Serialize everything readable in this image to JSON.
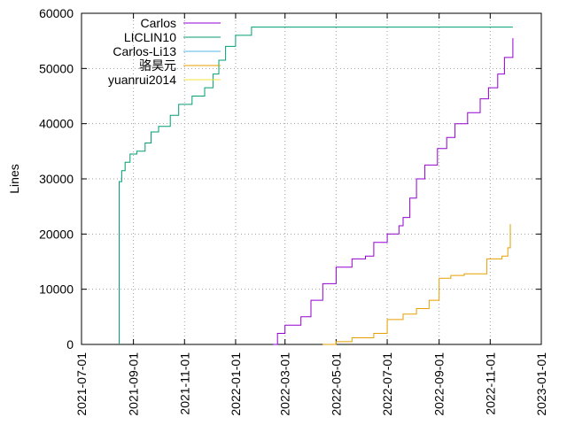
{
  "chart_data": {
    "type": "line",
    "title": "",
    "xlabel": "",
    "ylabel": "Lines",
    "xlim": [
      "2021-07-01",
      "2023-01-01"
    ],
    "ylim": [
      0,
      60000
    ],
    "grid": true,
    "legend_position": "top-left",
    "x_tick_labels": [
      "2021-07-01",
      "2021-09-01",
      "2021-11-01",
      "2022-01-01",
      "2022-03-01",
      "2022-05-01",
      "2022-07-01",
      "2022-09-01",
      "2022-11-01",
      "2023-01-01"
    ],
    "y_tick_labels": [
      "0",
      "10000",
      "20000",
      "30000",
      "40000",
      "50000",
      "60000"
    ],
    "y_ticks": [
      0,
      10000,
      20000,
      30000,
      40000,
      50000,
      60000
    ],
    "series": [
      {
        "name": "Carlos",
        "color": "#9400d3",
        "points": []
      },
      {
        "name": "LICLIN10",
        "color": "#009e73",
        "points": [
          [
            "2021-08-15",
            0
          ],
          [
            "2021-08-15",
            29500
          ],
          [
            "2021-08-18",
            31500
          ],
          [
            "2021-08-22",
            33000
          ],
          [
            "2021-08-28",
            34500
          ],
          [
            "2021-09-05",
            35000
          ],
          [
            "2021-09-15",
            36500
          ],
          [
            "2021-09-22",
            38500
          ],
          [
            "2021-10-01",
            39500
          ],
          [
            "2021-10-15",
            41500
          ],
          [
            "2021-10-25",
            43500
          ],
          [
            "2021-11-10",
            45000
          ],
          [
            "2021-11-25",
            46500
          ],
          [
            "2021-12-05",
            49000
          ],
          [
            "2021-12-12",
            51500
          ],
          [
            "2021-12-20",
            54000
          ],
          [
            "2022-01-01",
            56000
          ],
          [
            "2022-01-20",
            57500
          ],
          [
            "2022-11-28",
            57500
          ]
        ]
      },
      {
        "name": "Carlos-Li13",
        "color": "#56b4e9",
        "points": []
      },
      {
        "name": "骆昊元",
        "color": "#e69f00",
        "points": [
          [
            "2022-04-15",
            0
          ],
          [
            "2022-05-01",
            500
          ],
          [
            "2022-05-20",
            1200
          ],
          [
            "2022-06-15",
            2000
          ],
          [
            "2022-07-01",
            2200
          ],
          [
            "2022-07-01",
            4500
          ],
          [
            "2022-07-20",
            5500
          ],
          [
            "2022-08-05",
            6500
          ],
          [
            "2022-08-20",
            8000
          ],
          [
            "2022-09-01",
            9000
          ],
          [
            "2022-09-01",
            12000
          ],
          [
            "2022-09-15",
            12500
          ],
          [
            "2022-10-01",
            12800
          ],
          [
            "2022-10-28",
            12900
          ],
          [
            "2022-10-28",
            15500
          ],
          [
            "2022-11-15",
            16000
          ],
          [
            "2022-11-22",
            17500
          ],
          [
            "2022-11-25",
            21800
          ]
        ]
      },
      {
        "name": "yuanrui2014",
        "color": "#f0e442",
        "points": []
      },
      {
        "name": "",
        "color": "#9400d3",
        "points": [
          [
            "2022-02-15",
            0
          ],
          [
            "2022-02-20",
            2000
          ],
          [
            "2022-03-01",
            3500
          ],
          [
            "2022-03-20",
            5000
          ],
          [
            "2022-04-01",
            8000
          ],
          [
            "2022-04-15",
            11000
          ],
          [
            "2022-05-01",
            14000
          ],
          [
            "2022-05-20",
            15500
          ],
          [
            "2022-06-05",
            16000
          ],
          [
            "2022-06-15",
            18500
          ],
          [
            "2022-07-01",
            20000
          ],
          [
            "2022-07-15",
            21500
          ],
          [
            "2022-07-20",
            23000
          ],
          [
            "2022-07-28",
            26500
          ],
          [
            "2022-08-05",
            30000
          ],
          [
            "2022-08-15",
            32500
          ],
          [
            "2022-08-30",
            35500
          ],
          [
            "2022-09-10",
            37500
          ],
          [
            "2022-09-20",
            40000
          ],
          [
            "2022-10-05",
            42000
          ],
          [
            "2022-10-20",
            44500
          ],
          [
            "2022-10-30",
            46500
          ],
          [
            "2022-11-10",
            49000
          ],
          [
            "2022-11-18",
            52000
          ],
          [
            "2022-11-28",
            55500
          ]
        ]
      }
    ]
  }
}
